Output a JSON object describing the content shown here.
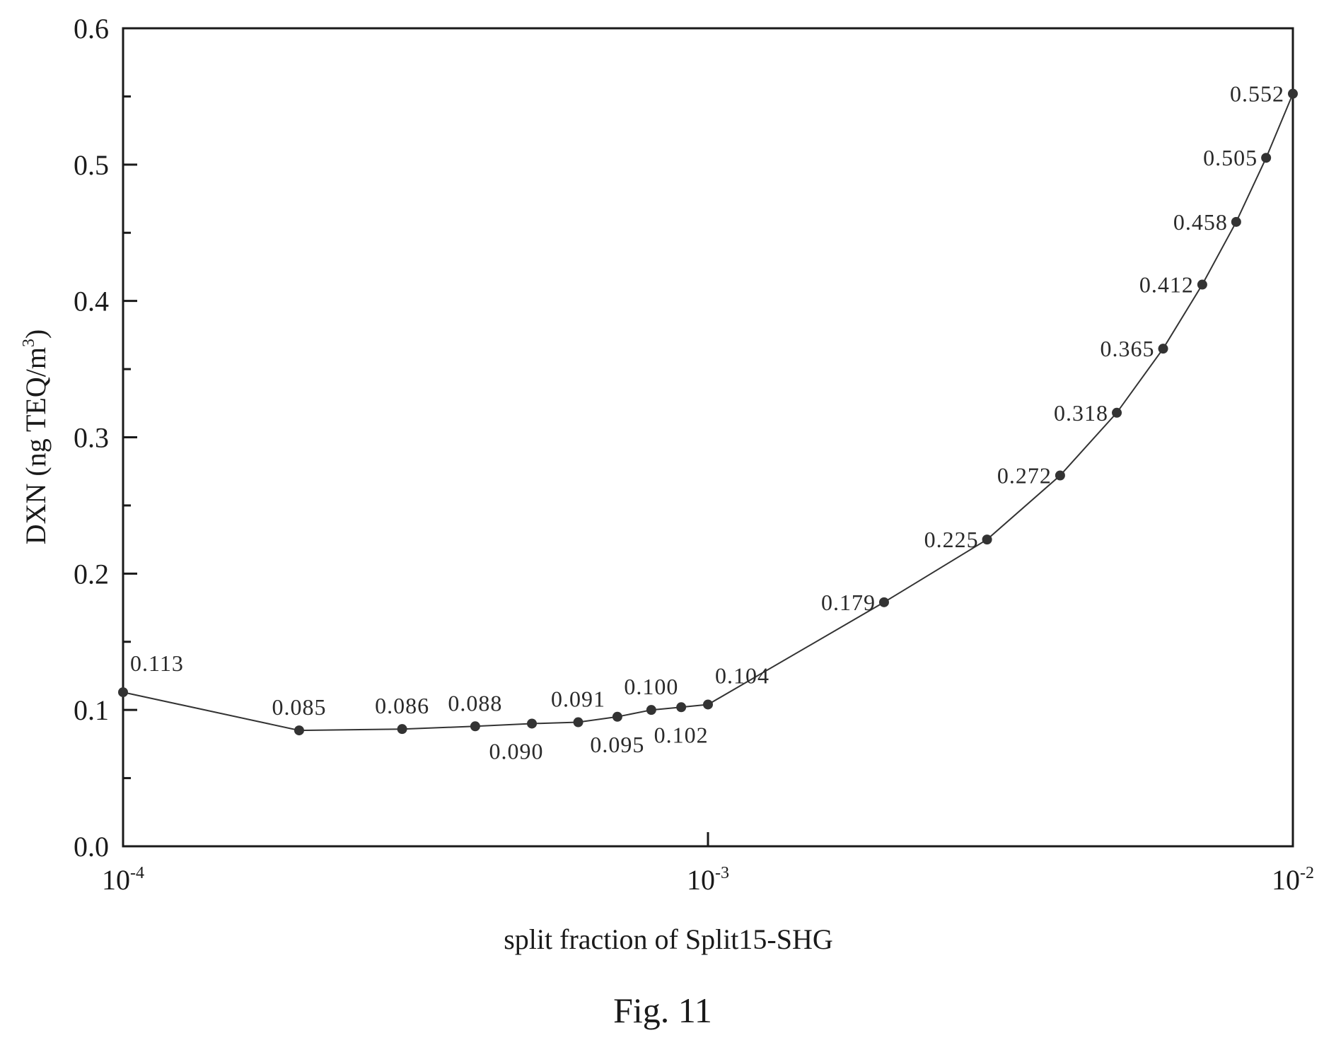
{
  "chart_data": {
    "type": "line",
    "xlabel": "split fraction of Split15-SHG",
    "ylabel": {
      "main": "DXN  (ng TEQ/m",
      "sup": "3",
      "close": ")"
    },
    "caption": "Fig. 11",
    "xscale": "log",
    "xlim": [
      0.0001,
      0.01
    ],
    "ylim": [
      0.0,
      0.6
    ],
    "grid": false,
    "x_ticks": [
      {
        "value": 0.0001,
        "base": "10",
        "exp": "-4"
      },
      {
        "value": 0.001,
        "base": "10",
        "exp": "-3"
      },
      {
        "value": 0.01,
        "base": "10",
        "exp": "-2"
      }
    ],
    "y_ticks": [
      {
        "value": 0.0,
        "label": "0.0"
      },
      {
        "value": 0.1,
        "label": "0.1"
      },
      {
        "value": 0.2,
        "label": "0.2"
      },
      {
        "value": 0.3,
        "label": "0.3"
      },
      {
        "value": 0.4,
        "label": "0.4"
      },
      {
        "value": 0.5,
        "label": "0.5"
      },
      {
        "value": 0.6,
        "label": "0.6"
      }
    ],
    "points": [
      {
        "x": 0.0001,
        "y": 0.113,
        "label": "0.113",
        "pos": "above-right"
      },
      {
        "x": 0.0002,
        "y": 0.085,
        "label": "0.085",
        "pos": "above"
      },
      {
        "x": 0.0003,
        "y": 0.086,
        "label": "0.086",
        "pos": "above"
      },
      {
        "x": 0.0004,
        "y": 0.088,
        "label": "0.088",
        "pos": "above"
      },
      {
        "x": 0.0005,
        "y": 0.09,
        "label": "0.090",
        "pos": "below-left"
      },
      {
        "x": 0.0006,
        "y": 0.091,
        "label": "0.091",
        "pos": "above"
      },
      {
        "x": 0.0007,
        "y": 0.095,
        "label": "0.095",
        "pos": "below"
      },
      {
        "x": 0.0008,
        "y": 0.1,
        "label": "0.100",
        "pos": "above"
      },
      {
        "x": 0.0009,
        "y": 0.102,
        "label": "0.102",
        "pos": "below"
      },
      {
        "x": 0.001,
        "y": 0.104,
        "label": "0.104",
        "pos": "above-right"
      },
      {
        "x": 0.002,
        "y": 0.179,
        "label": "0.179",
        "pos": "left"
      },
      {
        "x": 0.003,
        "y": 0.225,
        "label": "0.225",
        "pos": "left"
      },
      {
        "x": 0.004,
        "y": 0.272,
        "label": "0.272",
        "pos": "left"
      },
      {
        "x": 0.005,
        "y": 0.318,
        "label": "0.318",
        "pos": "left"
      },
      {
        "x": 0.006,
        "y": 0.365,
        "label": "0.365",
        "pos": "left"
      },
      {
        "x": 0.007,
        "y": 0.412,
        "label": "0.412",
        "pos": "left"
      },
      {
        "x": 0.008,
        "y": 0.458,
        "label": "0.458",
        "pos": "left"
      },
      {
        "x": 0.009,
        "y": 0.505,
        "label": "0.505",
        "pos": "left"
      },
      {
        "x": 0.01,
        "y": 0.552,
        "label": "0.552",
        "pos": "left"
      }
    ],
    "colors": {
      "line": "#333333",
      "marker": "#333333",
      "axis": "#1a1a1a"
    }
  }
}
